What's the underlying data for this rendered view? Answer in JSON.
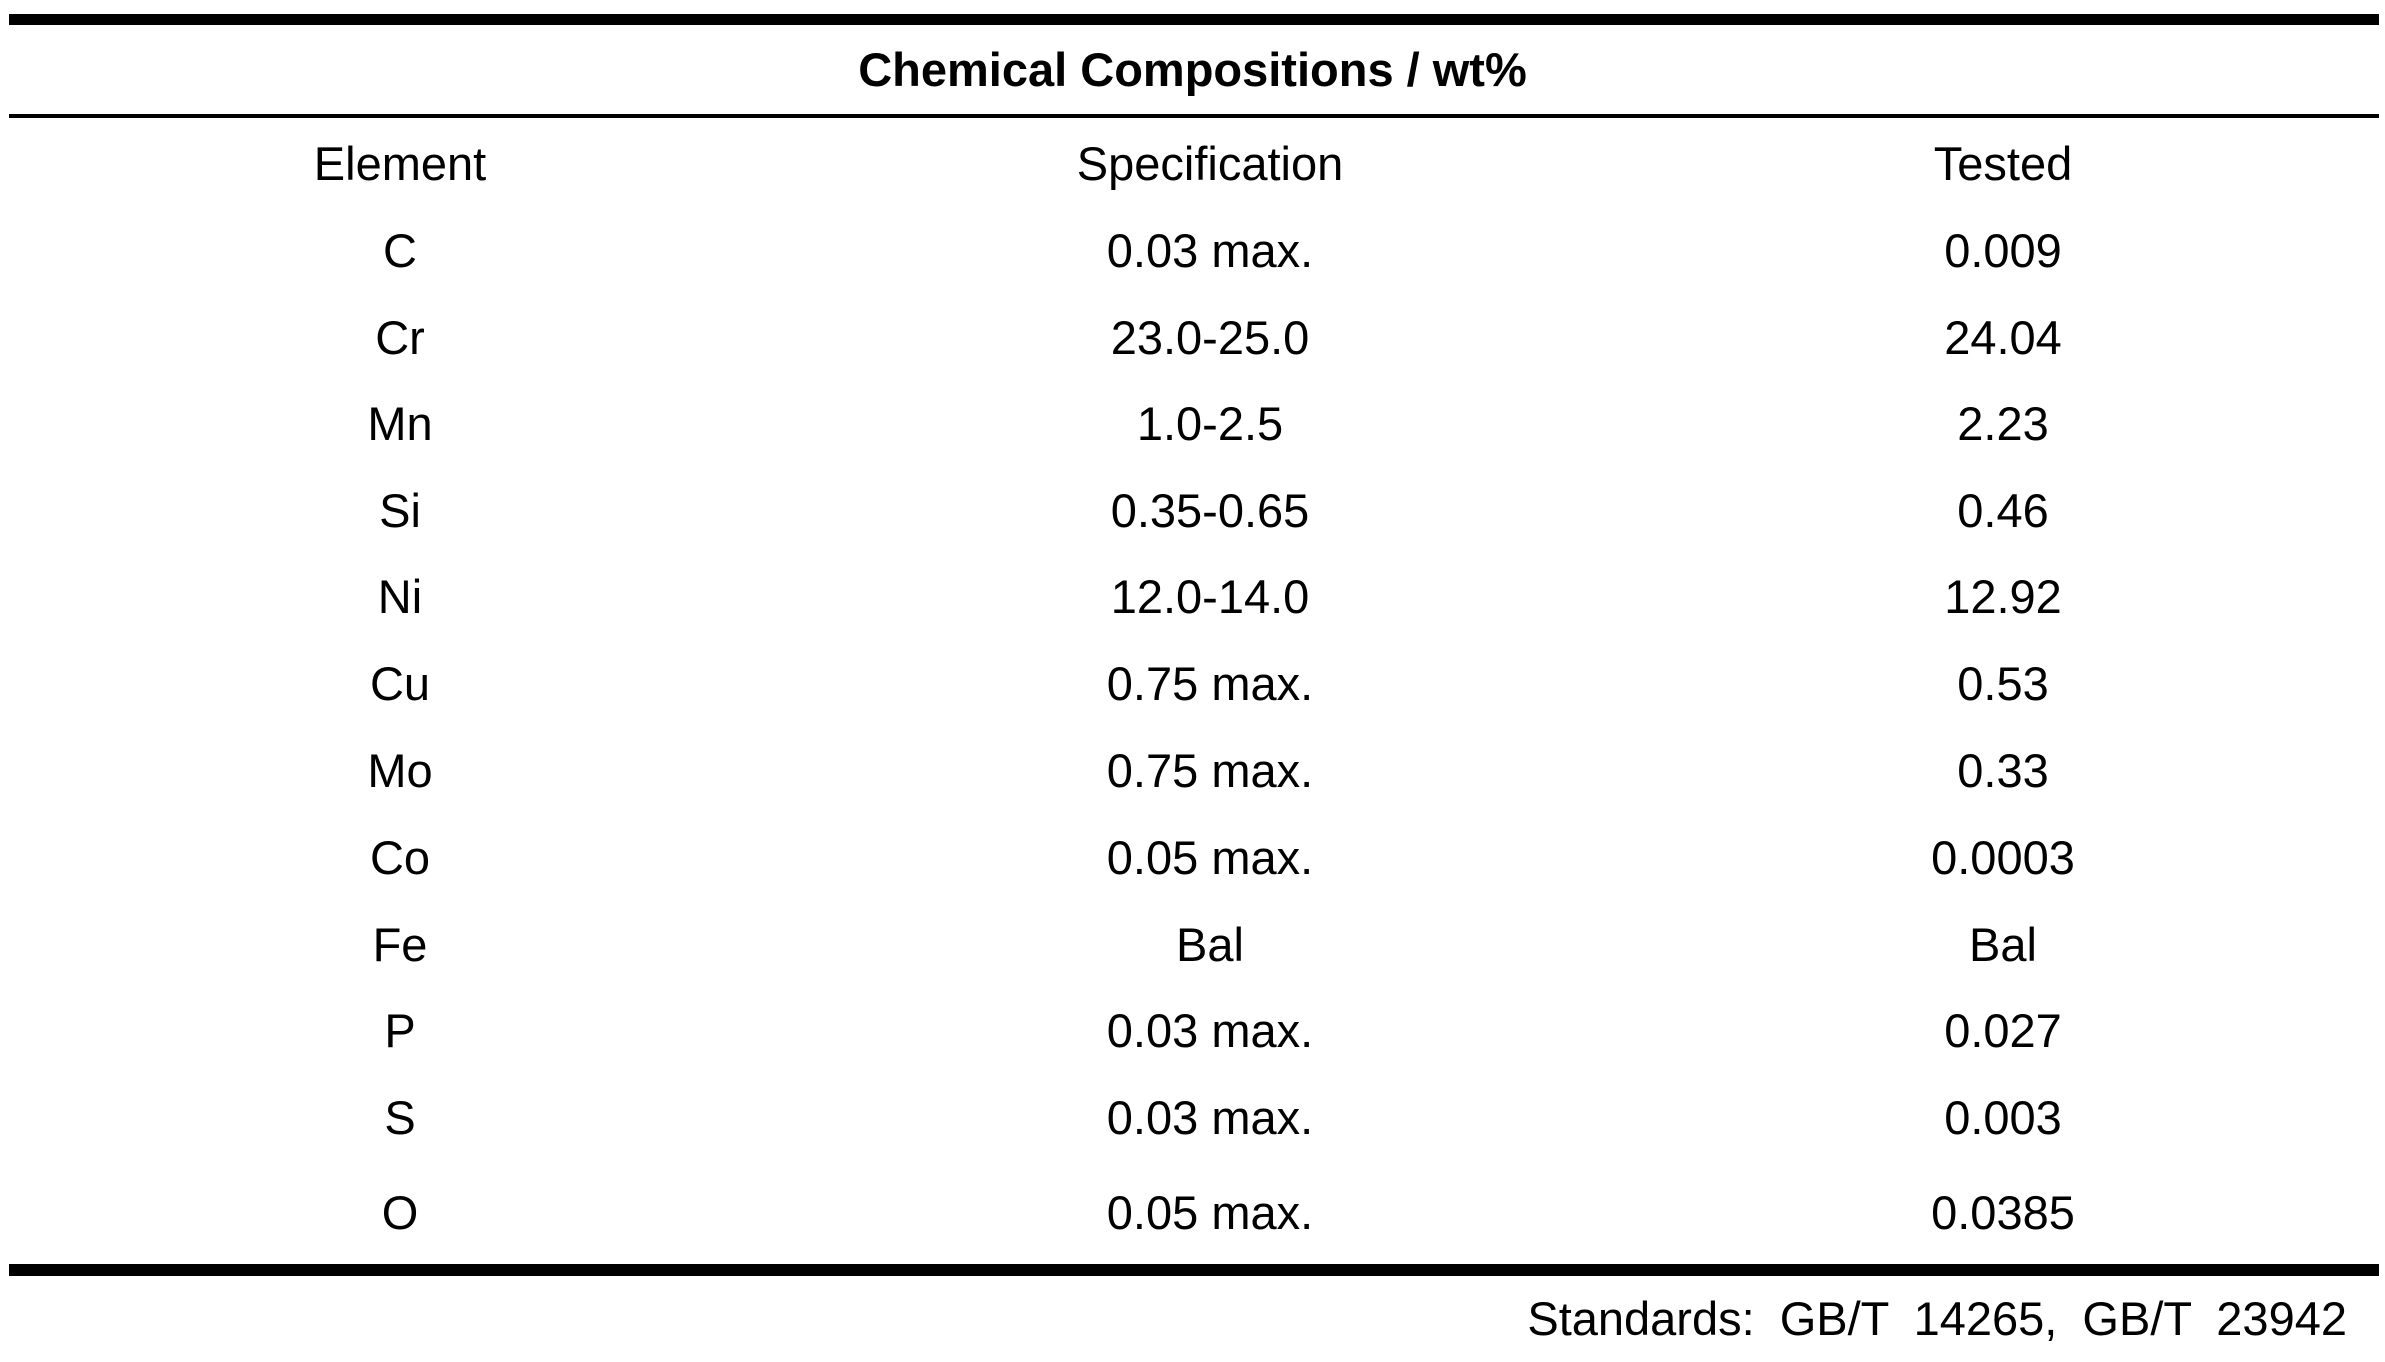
{
  "table": {
    "title": "Chemical Compositions / wt%",
    "headers": [
      "Element",
      "Specification",
      "Tested"
    ],
    "rows": [
      [
        "C",
        "0.03 max.",
        "0.009"
      ],
      [
        "Cr",
        "23.0-25.0",
        "24.04"
      ],
      [
        "Mn",
        "1.0-2.5",
        "2.23"
      ],
      [
        "Si",
        "0.35-0.65",
        "0.46"
      ],
      [
        "Ni",
        "12.0-14.0",
        "12.92"
      ],
      [
        "Cu",
        "0.75 max.",
        "0.53"
      ],
      [
        "Mo",
        "0.75 max.",
        "0.33"
      ],
      [
        "Co",
        "0.05 max.",
        "0.0003"
      ],
      [
        "Fe",
        "Bal",
        "Bal"
      ],
      [
        "P",
        "0.03 max.",
        "0.027"
      ],
      [
        "S",
        "0.03 max.",
        "0.003"
      ],
      [
        "O",
        "0.05 max.",
        "0.0385"
      ]
    ],
    "footnote": "Standards: GB/T 14265, GB/T 23942"
  }
}
